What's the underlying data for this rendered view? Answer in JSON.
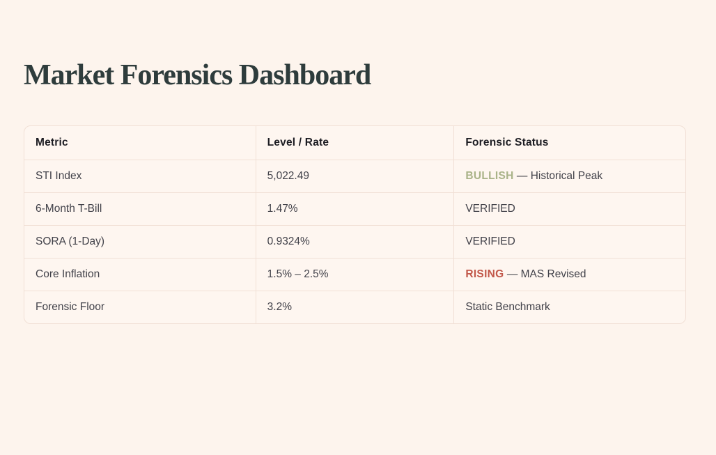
{
  "page": {
    "title": "Market Forensics Dashboard"
  },
  "colors": {
    "background": "#fdf4ed",
    "table_background": "#fef6f0",
    "table_border": "#f1e0d6",
    "title_text": "#2e3c3c",
    "header_text": "#1c1c22",
    "cell_text": "#414149",
    "bullish_green": "#a9b388",
    "rising_red": "#c2584a"
  },
  "table": {
    "columns": [
      "Metric",
      "Level / Rate",
      "Forensic Status"
    ],
    "rows": [
      {
        "metric": "STI Index",
        "level": "5,022.49",
        "status_tag": "BULLISH",
        "status_rest": "— Historical Peak",
        "tag_color": "#a9b388"
      },
      {
        "metric": "6-Month T-Bill",
        "level": "1.47%",
        "status_tag": "",
        "status_rest": "VERIFIED",
        "tag_color": ""
      },
      {
        "metric": "SORA (1-Day)",
        "level": "0.9324%",
        "status_tag": "",
        "status_rest": "VERIFIED",
        "tag_color": ""
      },
      {
        "metric": "Core Inflation",
        "level": "1.5% – 2.5%",
        "status_tag": "RISING",
        "status_rest": "— MAS Revised",
        "tag_color": "#c2584a"
      },
      {
        "metric": "Forensic Floor",
        "level": "3.2%",
        "status_tag": "",
        "status_rest": "Static Benchmark",
        "tag_color": ""
      }
    ]
  }
}
